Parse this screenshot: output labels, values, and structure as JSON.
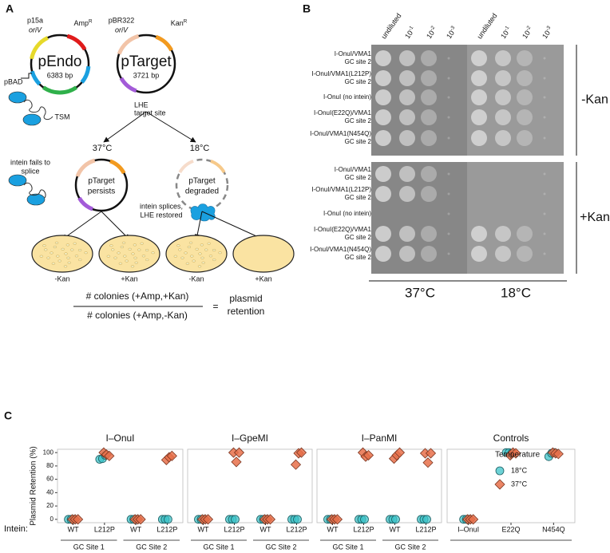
{
  "panel_labels": {
    "a": "A",
    "b": "B",
    "c": "C"
  },
  "panel_a": {
    "pendo": {
      "name": "pEndo",
      "size": "6383 bp",
      "ori_name": "p15a",
      "ori": "oriV",
      "marker": "Amp",
      "marker_sup": "R",
      "promoter": "pBAD",
      "tsm": "TSM"
    },
    "ptarget": {
      "name": "pTarget",
      "size": "3721 bp",
      "ori_name": "pBR322",
      "ori": "oriV",
      "marker": "Kan",
      "marker_sup": "R",
      "site": [
        "LHE",
        "target site"
      ]
    },
    "temps": [
      "37°C",
      "18°C"
    ],
    "persists": {
      "note": [
        "intein fails to",
        "splice"
      ],
      "label": [
        "pTarget",
        "persists"
      ]
    },
    "degraded": {
      "note": [
        "intein splices,",
        "LHE restored"
      ],
      "label": [
        "pTarget",
        "degraded"
      ]
    },
    "plates": [
      "-Kan",
      "+Kan",
      "-Kan",
      "+Kan"
    ],
    "formula": {
      "numerator": "# colonies (+Amp,+Kan)",
      "denominator": "# colonies (+Amp,-Kan)",
      "equals": "=",
      "result": [
        "plasmid",
        "retention"
      ]
    }
  },
  "panel_b": {
    "plates": [
      {
        "temp": "37°C",
        "columns": [
          {
            "text": "undiluted"
          },
          {
            "text": "10",
            "sup": "-1"
          },
          {
            "text": "10",
            "sup": "-2"
          },
          {
            "text": "10",
            "sup": "-3"
          }
        ]
      },
      {
        "temp": "18°C",
        "columns": [
          {
            "text": "undiluted"
          },
          {
            "text": "10",
            "sup": "-1"
          },
          {
            "text": "10",
            "sup": "-2"
          },
          {
            "text": "10",
            "sup": "-3"
          }
        ]
      }
    ],
    "groups": [
      {
        "label": "-Kan",
        "rows": [
          [
            "I-OnuI/VMA1",
            "GC site 2"
          ],
          [
            "I-OnuI/VMA1(L212P)",
            "GC site 2"
          ],
          [
            "I-OnuI (no intein)"
          ],
          [
            "I-OnuI(E22Q)/VMA1",
            "GC site 2"
          ],
          [
            "I-OnuI/VMA1(N454Q)",
            "GC site 2"
          ]
        ]
      },
      {
        "label": "+Kan",
        "rows": [
          [
            "I-OnuI/VMA1",
            "GC site 2"
          ],
          [
            "I-OnuI/VMA1(L212P)",
            "GC site 2"
          ],
          [
            "I-OnuI (no intein)"
          ],
          [
            "I-OnuI(E22Q)/VMA1",
            "GC site 2"
          ],
          [
            "I-OnuI/VMA1(N454Q)",
            "GC site 2"
          ]
        ]
      }
    ]
  },
  "chart_data": {
    "type": "scatter",
    "y_label": "Plasmid Retention (%)",
    "x_label": "Intein:",
    "ylim": [
      -5,
      105
    ],
    "yticks": [
      0,
      20,
      40,
      60,
      80,
      100
    ],
    "legend_title": "Temperature",
    "legend": "right",
    "series": [
      {
        "name": "18°C",
        "color": "#3cc3c8"
      },
      {
        "name": "37°C",
        "color": "#e8704a"
      }
    ],
    "facets": [
      {
        "title": "I–OnuI",
        "groups": [
          {
            "label": "GC Site 1",
            "categories": [
              "WT",
              "L212P"
            ]
          },
          {
            "label": "GC Site 2",
            "categories": [
              "WT",
              "L212P"
            ]
          }
        ],
        "series": [
          {
            "values": [
              [
                0,
                0,
                0
              ],
              [
                90,
                91,
                96
              ],
              [
                0,
                0,
                0
              ],
              [
                0,
                0,
                0
              ]
            ]
          },
          {
            "values": [
              [
                0,
                0,
                0
              ],
              [
                100,
                97,
                95
              ],
              [
                0,
                0,
                0
              ],
              [
                89,
                93,
                95
              ]
            ]
          }
        ]
      },
      {
        "title": "I–GpeMI",
        "groups": [
          {
            "label": "GC Site 1",
            "categories": [
              "WT",
              "L212P"
            ]
          },
          {
            "label": "GC Site 2",
            "categories": [
              "WT",
              "L212P"
            ]
          }
        ],
        "series": [
          {
            "values": [
              [
                0,
                0,
                0
              ],
              [
                0,
                0,
                0
              ],
              [
                0,
                0,
                0
              ],
              [
                0,
                0,
                0
              ]
            ]
          },
          {
            "values": [
              [
                0,
                0,
                0
              ],
              [
                100,
                86,
                100
              ],
              [
                0,
                0,
                0
              ],
              [
                82,
                99,
                100
              ]
            ]
          }
        ]
      },
      {
        "title": "I–PanMI",
        "groups": [
          {
            "label": "GC Site 1",
            "categories": [
              "WT",
              "L212P"
            ]
          },
          {
            "label": "GC Site 2",
            "categories": [
              "WT",
              "L212P"
            ]
          }
        ],
        "series": [
          {
            "values": [
              [
                0,
                0,
                0
              ],
              [
                0,
                0,
                0
              ],
              [
                0,
                0,
                0
              ],
              [
                0,
                0,
                0
              ]
            ]
          },
          {
            "values": [
              [
                0,
                0,
                0
              ],
              [
                100,
                94,
                96
              ],
              [
                91,
                96,
                100
              ],
              [
                99,
                85,
                99
              ]
            ]
          }
        ]
      },
      {
        "title": "Controls",
        "groups": [
          {
            "categories": [
              "I–OnuI",
              "E22Q",
              "N454Q"
            ]
          }
        ],
        "series": [
          {
            "values": [
              [
                0,
                0,
                0
              ],
              [
                100,
                100,
                99
              ],
              [
                94,
                99,
                100
              ]
            ]
          },
          {
            "values": [
              [
                0,
                0,
                0
              ],
              [
                96,
                100,
                99
              ],
              [
                100,
                99,
                98
              ]
            ]
          }
        ]
      }
    ]
  }
}
